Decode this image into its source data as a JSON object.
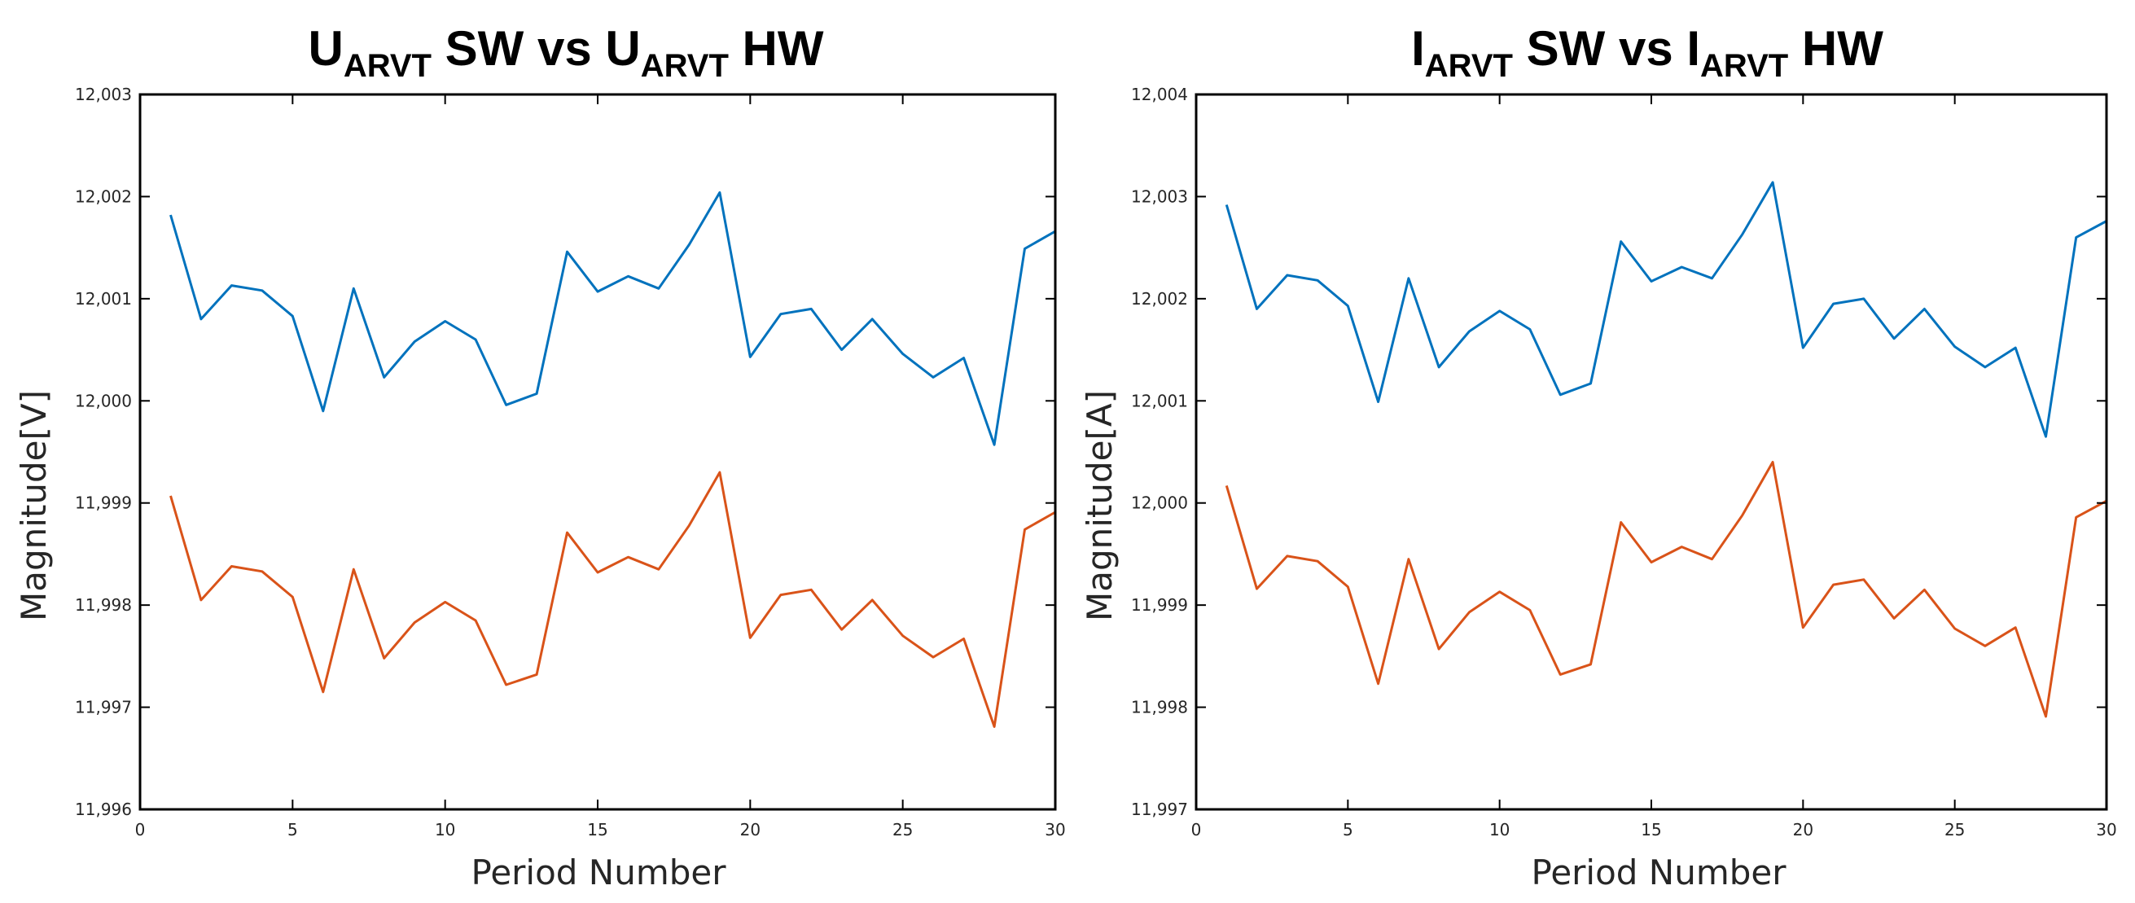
{
  "chart_data": [
    {
      "type": "line",
      "title": {
        "main": "U",
        "sub1": "ARVT",
        "mid": " SW vs U",
        "sub2": "ARVT",
        "end": " HW"
      },
      "xlabel": "Period Number",
      "ylabel": "Magnitude[V]",
      "xlim": [
        0,
        30
      ],
      "ylim": [
        11.996,
        12.003
      ],
      "xticks": [
        "0",
        "5",
        "10",
        "15",
        "20",
        "25",
        "30"
      ],
      "yticks": [
        "11,996",
        "11,997",
        "11,998",
        "11,999",
        "12,000",
        "12,001",
        "12,002",
        "12,003"
      ],
      "grid": false,
      "x": [
        1,
        2,
        3,
        4,
        5,
        6,
        7,
        8,
        9,
        10,
        11,
        12,
        13,
        14,
        15,
        16,
        17,
        18,
        19,
        20,
        21,
        22,
        23,
        24,
        25,
        26,
        27,
        28,
        29,
        30
      ],
      "series": [
        {
          "color": "#0072BD",
          "values": [
            12.00182,
            12.0008,
            12.00113,
            12.00108,
            12.00083,
            11.9999,
            12.0011,
            12.00023,
            12.00058,
            12.00078,
            12.0006,
            11.99996,
            12.00007,
            12.00146,
            12.00107,
            12.00122,
            12.0011,
            12.00153,
            12.00204,
            12.00043,
            12.00085,
            12.0009,
            12.0005,
            12.0008,
            12.00046,
            12.00023,
            12.00042,
            11.99957,
            12.00149,
            12.00166
          ]
        },
        {
          "color": "#D95319",
          "values": [
            11.99907,
            11.99805,
            11.99838,
            11.99833,
            11.99808,
            11.99715,
            11.99835,
            11.99748,
            11.99783,
            11.99803,
            11.99785,
            11.99722,
            11.99732,
            11.99871,
            11.99832,
            11.99847,
            11.99835,
            11.99878,
            11.9993,
            11.99768,
            11.9981,
            11.99815,
            11.99776,
            11.99805,
            11.9977,
            11.99749,
            11.99767,
            11.99681,
            11.99874,
            11.99891
          ]
        }
      ]
    },
    {
      "type": "line",
      "title": {
        "main": "I",
        "sub1": "ARVT",
        "mid": " SW vs I",
        "sub2": "ARVT",
        "end": " HW"
      },
      "xlabel": "Period Number",
      "ylabel": "Magnitude[A]",
      "xlim": [
        0,
        30
      ],
      "ylim": [
        11.997,
        12.004
      ],
      "xticks": [
        "0",
        "5",
        "10",
        "15",
        "20",
        "25",
        "30"
      ],
      "yticks": [
        "11,997",
        "11,998",
        "11,999",
        "12,000",
        "12,001",
        "12,002",
        "12,003",
        "12,004"
      ],
      "grid": false,
      "x": [
        1,
        2,
        3,
        4,
        5,
        6,
        7,
        8,
        9,
        10,
        11,
        12,
        13,
        14,
        15,
        16,
        17,
        18,
        19,
        20,
        21,
        22,
        23,
        24,
        25,
        26,
        27,
        28,
        29,
        30
      ],
      "series": [
        {
          "color": "#0072BD",
          "values": [
            12.00292,
            12.0019,
            12.00223,
            12.00218,
            12.00193,
            12.00099,
            12.0022,
            12.00133,
            12.00168,
            12.00188,
            12.0017,
            12.00106,
            12.00117,
            12.00256,
            12.00217,
            12.00231,
            12.0022,
            12.00263,
            12.00314,
            12.00152,
            12.00195,
            12.002,
            12.00161,
            12.0019,
            12.00153,
            12.00133,
            12.00152,
            12.00065,
            12.0026,
            12.00276
          ]
        },
        {
          "color": "#D95319",
          "values": [
            12.00017,
            11.99916,
            11.99948,
            11.99943,
            11.99918,
            11.99823,
            11.99945,
            11.99857,
            11.99893,
            11.99913,
            11.99895,
            11.99832,
            11.99842,
            11.99981,
            11.99942,
            11.99957,
            11.99945,
            11.99988,
            12.0004,
            11.99878,
            11.9992,
            11.99925,
            11.99887,
            11.99915,
            11.99877,
            11.9986,
            11.99878,
            11.99791,
            11.99986,
            12.00002
          ]
        }
      ]
    }
  ]
}
